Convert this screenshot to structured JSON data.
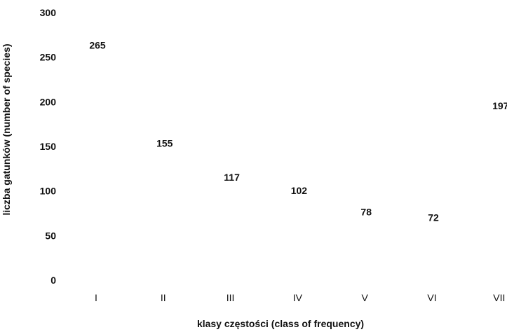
{
  "chart_data": {
    "type": "bar",
    "categories": [
      "I",
      "II",
      "III",
      "IV",
      "V",
      "VI",
      "VII"
    ],
    "values": [
      265,
      155,
      117,
      102,
      78,
      72,
      197
    ],
    "data_labels": [
      "265",
      "155",
      "117",
      "102",
      "78",
      "72",
      "197"
    ],
    "xlabel": "klasy częstości (class of frequency)",
    "ylabel": "liczba gatunków (number of species)",
    "ylim": [
      0,
      300
    ],
    "yticks": [
      "0",
      "50",
      "100",
      "150",
      "200",
      "250",
      "300"
    ],
    "grid": false,
    "legend": "none",
    "bar_color": "#ffffff",
    "text_color": "#111111"
  }
}
